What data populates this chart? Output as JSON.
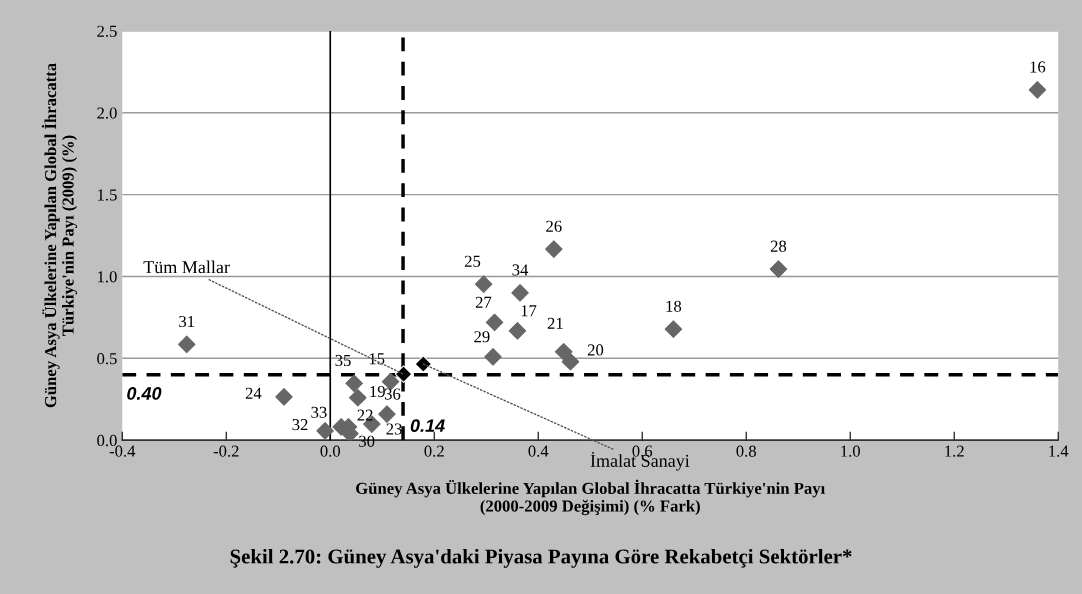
{
  "chart_data": {
    "type": "scatter",
    "title": "Şekil 2.70: Güney Asya'daki Piyasa Payına Göre Rekabetçi Sektörler*",
    "xlabel": "Güney Asya Ülkelerine Yapılan Global İhracatta Türkiye'nin Payı\n(2000-2009 Değişimi) (% Fark)",
    "ylabel": "Güney Asya Ülkelerine Yapılan Global İhracatta\nTürkiye'nin Payı (2009) (%)",
    "series": [
      {
        "color": "#666666",
        "x": [
          1.36,
          -0.276,
          -0.089,
          0.046,
          0.116,
          0.053,
          0.109,
          0.021,
          0.035,
          0.038,
          0.08,
          -0.01,
          0.43,
          0.295,
          0.365,
          0.316,
          0.36,
          0.313,
          0.449,
          0.462,
          0.66,
          0.862
        ],
        "values": [
          2.14,
          0.585,
          0.265,
          0.347,
          0.357,
          0.259,
          0.159,
          0.081,
          0.081,
          0.04,
          0.098,
          0.057,
          1.167,
          0.953,
          0.9,
          0.719,
          0.668,
          0.509,
          0.54,
          0.479,
          0.678,
          1.045
        ]
      },
      {
        "color": "#000000",
        "x": [
          0.141,
          0.179
        ],
        "values": [
          0.403,
          0.465
        ]
      }
    ],
    "marker": "diamond",
    "xlim": [
      -0.4,
      1.4
    ],
    "ylim": [
      0,
      2.5
    ],
    "xticks": [
      -0.4,
      -0.2,
      {
        "value": 0,
        "label": "0.0"
      },
      0.2,
      0.4,
      0.6,
      0.8,
      {
        "value": 1,
        "label": "1.0"
      },
      1.2,
      1.4
    ],
    "yticks": [
      {
        "value": 0,
        "label": "0.0"
      },
      0.5,
      {
        "value": 1,
        "label": "1.0"
      },
      1.5,
      {
        "value": 2,
        "label": "2.0"
      },
      2.5
    ],
    "grid": "y",
    "ref_lines": [
      {
        "axis": "x",
        "value": 0,
        "color": "#000000",
        "line_style": "solid"
      },
      {
        "axis": "y",
        "value": 0.4,
        "label": "0.40",
        "color": "#000000",
        "line_style": "dashed"
      },
      {
        "axis": "x",
        "value": 0.14,
        "label": "0.14",
        "color": "#000000",
        "line_style": "dashed"
      }
    ],
    "annotations": [
      {
        "text": "16",
        "x": 1.36,
        "y": 2.14
      },
      {
        "text": "31",
        "x": -0.276,
        "y": 0.585
      },
      {
        "text": "24",
        "x": -0.089,
        "y": 0.265
      },
      {
        "text": "35",
        "x": 0.046,
        "y": 0.347
      },
      {
        "text": "15",
        "x": 0.116,
        "y": 0.357
      },
      {
        "text": "19",
        "x": 0.053,
        "y": 0.259
      },
      {
        "text": "36",
        "x": 0.109,
        "y": 0.159
      },
      {
        "text": "33",
        "x": 0.021,
        "y": 0.081
      },
      {
        "text": "22",
        "x": 0.035,
        "y": 0.081
      },
      {
        "text": "30",
        "x": 0.038,
        "y": 0.04
      },
      {
        "text": "23",
        "x": 0.08,
        "y": 0.098
      },
      {
        "text": "32",
        "x": -0.01,
        "y": 0.057
      },
      {
        "text": "26",
        "x": 0.43,
        "y": 1.167
      },
      {
        "text": "25",
        "x": 0.295,
        "y": 0.953
      },
      {
        "text": "34",
        "x": 0.365,
        "y": 0.9
      },
      {
        "text": "27",
        "x": 0.316,
        "y": 0.719
      },
      {
        "text": "17",
        "x": 0.36,
        "y": 0.668
      },
      {
        "text": "29",
        "x": 0.313,
        "y": 0.509
      },
      {
        "text": "21",
        "x": 0.449,
        "y": 0.54
      },
      {
        "text": "20",
        "x": 0.462,
        "y": 0.479
      },
      {
        "text": "18",
        "x": 0.66,
        "y": 0.678
      },
      {
        "text": "28",
        "x": 0.862,
        "y": 1.045
      },
      {
        "text": "Tüm Mallar",
        "x": 0.141,
        "y": 0.403
      },
      {
        "text": "İmalat Sanayi",
        "x": 0.179,
        "y": 0.465
      }
    ]
  }
}
